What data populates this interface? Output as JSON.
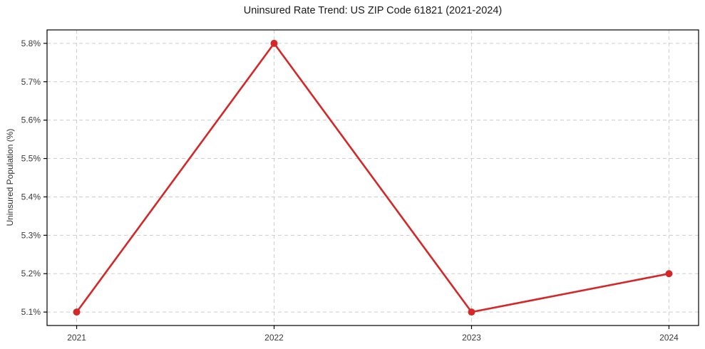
{
  "chart_data": {
    "type": "line",
    "title": "Uninsured Rate Trend: US ZIP Code 61821 (2021-2024)",
    "xlabel": "",
    "ylabel": "Uninsured Population (%)",
    "x": [
      2021,
      2022,
      2023,
      2024
    ],
    "x_tick_labels": [
      "2021",
      "2022",
      "2023",
      "2024"
    ],
    "series": [
      {
        "name": "Uninsured Rate",
        "values": [
          5.1,
          5.8,
          5.1,
          5.2
        ],
        "color": "#d62728",
        "marker": "circle"
      }
    ],
    "y_ticks": [
      5.1,
      5.2,
      5.3,
      5.4,
      5.5,
      5.6,
      5.7,
      5.8
    ],
    "y_tick_labels": [
      "5.1%",
      "5.2%",
      "5.3%",
      "5.4%",
      "5.5%",
      "5.6%",
      "5.7%",
      "5.8%"
    ],
    "xlim": [
      2020.85,
      2024.15
    ],
    "ylim": [
      5.065,
      5.835
    ],
    "grid": true,
    "grid_style": "dashed",
    "legend": "none",
    "colors": {
      "line": "#d62728",
      "grid": "#cdcdcd",
      "spine": "#000000",
      "tick_text": "#3a3a3a",
      "title_text": "#1a1a1a",
      "background": "#ffffff"
    }
  }
}
